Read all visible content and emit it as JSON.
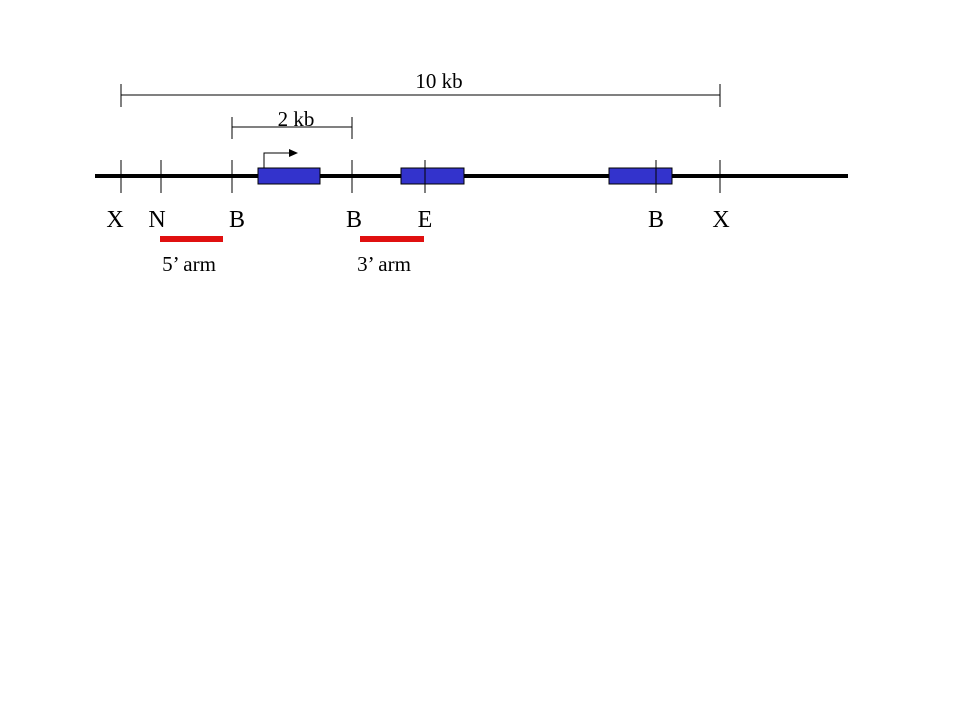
{
  "scale_bars": {
    "large": {
      "label": "10 kb"
    },
    "small": {
      "label": "2 kb"
    }
  },
  "restriction_sites": {
    "x_left": "X",
    "n": "N",
    "b1": "B",
    "b2": "B",
    "e": "E",
    "b3": "B",
    "x_right": "X"
  },
  "homology_arms": {
    "five_prime": "5’ arm",
    "three_prime": "3’ arm"
  },
  "colors": {
    "exon": "#3333cc",
    "arm": "#e01010",
    "line": "#000000"
  }
}
